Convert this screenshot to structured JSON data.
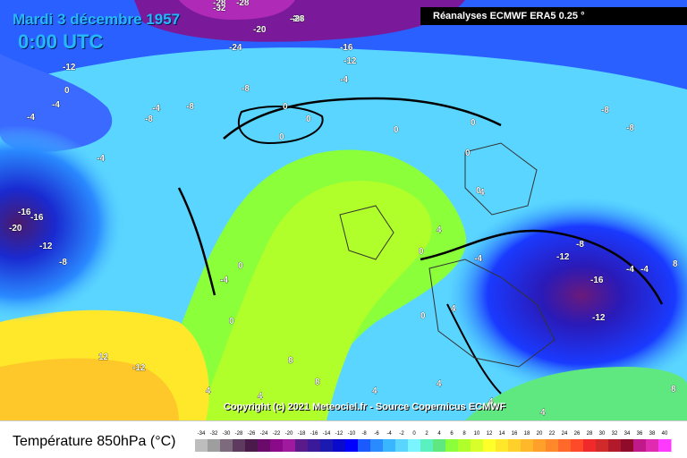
{
  "header": {
    "date": "Mardi 3 décembre 1957",
    "time": "0:00 UTC",
    "source": "Réanalyses ECMWF ERA5 0.25 °"
  },
  "map": {
    "copyright": "Copyright (c) 2021 Meteociel.fr - Source Copernicus ECMWF",
    "contour_labels": [
      "-28",
      "-32",
      "-28",
      "-24",
      "-24",
      "-20",
      "-16",
      "-12",
      "-4",
      "-28",
      "-12",
      "-8",
      "-4",
      "0",
      "-4",
      "0",
      "-8",
      "-4",
      "-8",
      "0",
      "0",
      "0",
      "0",
      "0",
      "-8",
      "-8",
      "-4",
      "0",
      "4",
      "-16",
      "-16",
      "-20",
      "-12",
      "-8",
      "-4",
      "0",
      "0",
      "-4",
      "0",
      "-12",
      "-8",
      "-16",
      "-4",
      "-12",
      "0",
      "4",
      "4",
      "8",
      "12",
      "-12",
      "8",
      "8",
      "4",
      "4",
      "4",
      "4",
      "4",
      "4",
      "-4",
      "8"
    ]
  },
  "legend": {
    "title": "Température 850hPa (°C)",
    "ticks": [
      "-34",
      "-32",
      "-30",
      "-28",
      "-26",
      "-24",
      "-22",
      "-20",
      "-18",
      "-16",
      "-14",
      "-12",
      "-10",
      "-8",
      "-6",
      "-4",
      "-2",
      "0",
      "2",
      "4",
      "6",
      "8",
      "10",
      "12",
      "14",
      "16",
      "18",
      "20",
      "22",
      "24",
      "26",
      "28",
      "30",
      "32",
      "34",
      "36",
      "38",
      "40"
    ],
    "colors": [
      "#bdbdbd",
      "#9e9e9e",
      "#7d6b7d",
      "#5e3b5e",
      "#4a1a4a",
      "#6a0a6a",
      "#8a0a8a",
      "#a01aa0",
      "#5a1a8a",
      "#3a1a9a",
      "#1a1ab0",
      "#0a0acc",
      "#0000ff",
      "#1a5aff",
      "#2a8aff",
      "#3ab5ff",
      "#5ad5ff",
      "#7af5ff",
      "#5af0c0",
      "#60e880",
      "#8aff3a",
      "#b0ff2a",
      "#d8ff2a",
      "#ffff2a",
      "#ffe82a",
      "#ffd02a",
      "#ffb82a",
      "#ffa02a",
      "#ff882a",
      "#ff6a2a",
      "#ff4a2a",
      "#f02a2a",
      "#d02a2a",
      "#b01a2a",
      "#900a2a",
      "#c01a8a",
      "#e02ab0",
      "#ff3aff"
    ]
  }
}
